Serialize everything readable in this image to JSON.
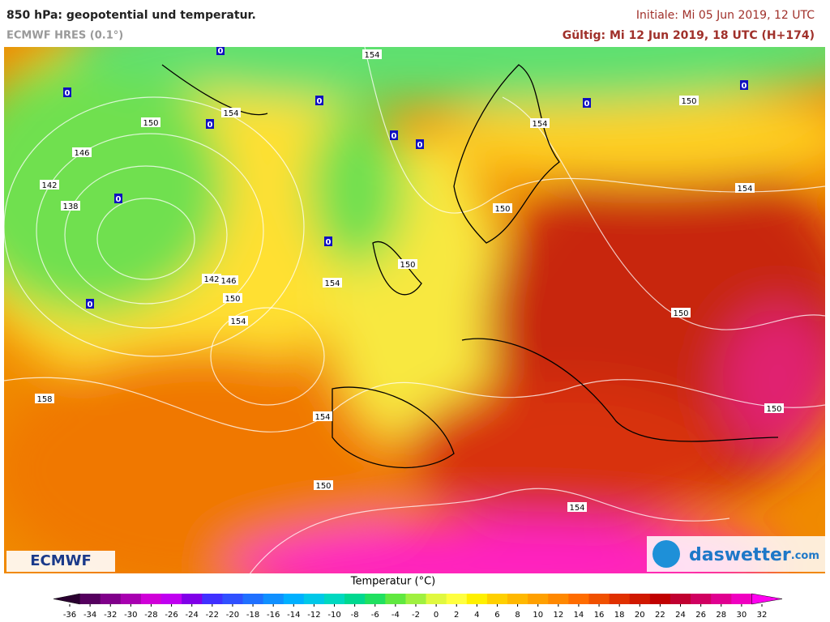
{
  "header": {
    "title": "850 hPa: geopotential und temperatur.",
    "model": "ECMWF HRES (0.1°)",
    "initial": "Initiale: Mi 05 Jun 2019, 12 UTC",
    "valid": "Gültig: Mi 12 Jun 2019, 18 UTC (H+174)"
  },
  "map": {
    "contour_labels": [
      154,
      154,
      150,
      146,
      142,
      138,
      150,
      154,
      154,
      150,
      150,
      154,
      142,
      146,
      150,
      154,
      150,
      158,
      154,
      150,
      150,
      154
    ],
    "zero_labels": [
      0,
      0,
      0,
      0,
      0,
      0,
      0,
      0,
      0,
      0,
      0
    ],
    "logo_left": "ECMWF",
    "logo_right": "daswetter",
    "logo_right_suffix": ".com"
  },
  "colorbar": {
    "title": "Temperatur (°C)",
    "ticks": [
      -36,
      -34,
      -32,
      -30,
      -28,
      -26,
      -24,
      -22,
      -20,
      -18,
      -16,
      -14,
      -12,
      -10,
      -8,
      -6,
      -4,
      -2,
      0,
      2,
      4,
      6,
      8,
      10,
      12,
      14,
      16,
      18,
      20,
      22,
      24,
      26,
      28,
      30,
      32
    ],
    "colors": [
      "#2a0030",
      "#55005e",
      "#80008a",
      "#a800b0",
      "#d000d8",
      "#c000f0",
      "#8000e8",
      "#4030ff",
      "#3050ff",
      "#2070ff",
      "#1090ff",
      "#00b0ff",
      "#00c8e8",
      "#00d8c0",
      "#00d890",
      "#20e060",
      "#60e840",
      "#a0f040",
      "#e0f840",
      "#ffff40",
      "#fff000",
      "#ffd000",
      "#ffb800",
      "#ffa000",
      "#ff8800",
      "#ff6c00",
      "#f05000",
      "#e03000",
      "#d01800",
      "#c00000",
      "#c00030",
      "#d00060",
      "#e00090",
      "#f000c0",
      "#ff00f0"
    ]
  }
}
